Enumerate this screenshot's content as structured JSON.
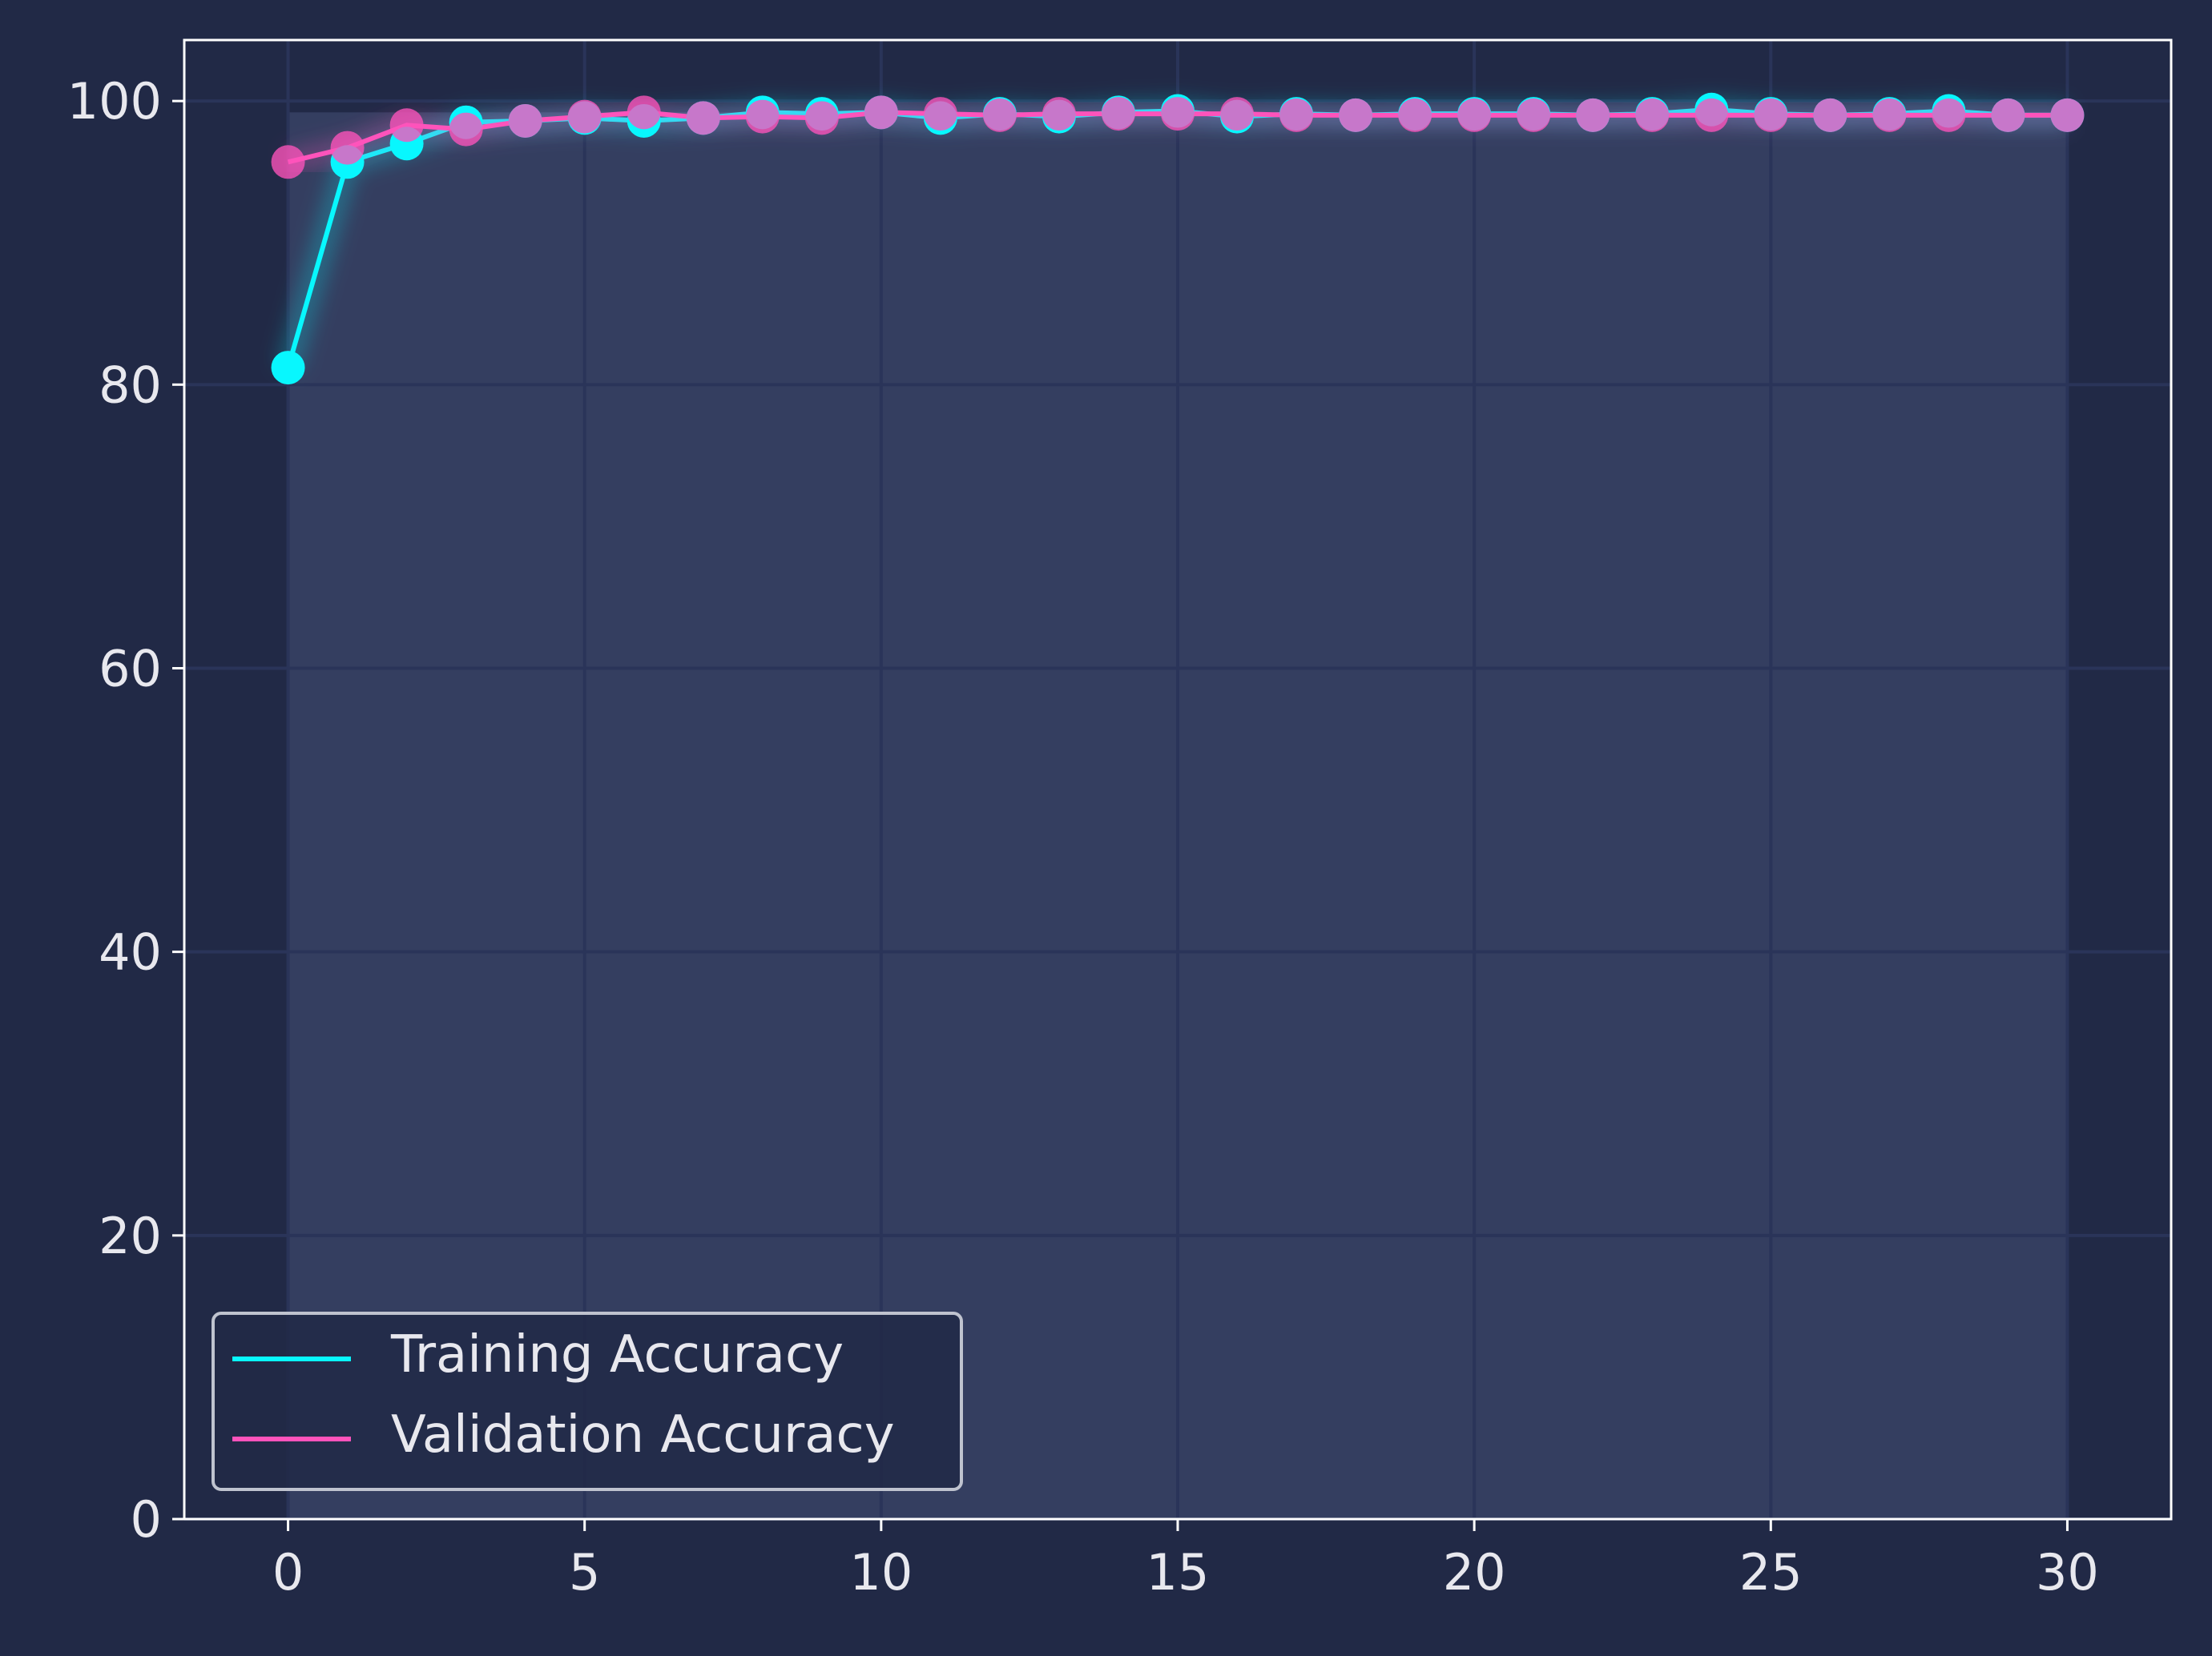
{
  "colors": {
    "background": "#212946",
    "plot_fill": "#343e60",
    "grid": "#2A3459",
    "axis": "#ffffff",
    "text": "#e8e8ee",
    "training": "#08F7FE",
    "validation": "#FE53BB"
  },
  "chart_data": {
    "type": "line",
    "title": "",
    "xlabel": "",
    "ylabel": "",
    "xlim": [
      -1.75,
      31.75
    ],
    "ylim": [
      0,
      104.3
    ],
    "x_ticks": [
      0,
      5,
      10,
      15,
      20,
      25,
      30
    ],
    "y_ticks": [
      0,
      20,
      40,
      60,
      80,
      100
    ],
    "grid": true,
    "legend_position": "lower-left",
    "x": [
      0,
      1,
      2,
      3,
      4,
      5,
      6,
      7,
      8,
      9,
      10,
      11,
      12,
      13,
      14,
      15,
      16,
      17,
      18,
      19,
      20,
      21,
      22,
      23,
      24,
      25,
      26,
      27,
      28,
      29,
      30
    ],
    "series": [
      {
        "name": "Training Accuracy",
        "color": "#08F7FE",
        "values": [
          81.2,
          95.7,
          97.0,
          98.5,
          98.6,
          98.8,
          98.6,
          98.8,
          99.2,
          99.1,
          99.2,
          98.8,
          99.1,
          98.9,
          99.2,
          99.3,
          98.9,
          99.1,
          99.0,
          99.1,
          99.1,
          99.1,
          99.0,
          99.1,
          99.4,
          99.1,
          99.0,
          99.1,
          99.3,
          99.0,
          99.0
        ]
      },
      {
        "name": "Validation Accuracy",
        "color": "#FE53BB",
        "values": [
          95.7,
          96.7,
          98.3,
          98.0,
          98.6,
          98.9,
          99.2,
          98.8,
          98.9,
          98.8,
          99.2,
          99.1,
          99.0,
          99.1,
          99.1,
          99.1,
          99.1,
          99.0,
          99.0,
          99.0,
          99.0,
          99.0,
          99.0,
          99.0,
          99.0,
          99.0,
          99.0,
          99.0,
          99.0,
          99.0,
          99.0
        ]
      }
    ]
  }
}
